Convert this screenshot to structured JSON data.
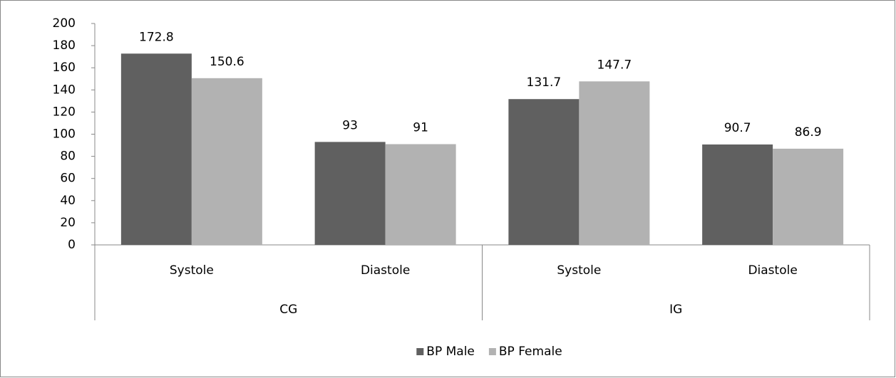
{
  "chart_data": {
    "type": "bar",
    "categories": [
      "Systole",
      "Diastole",
      "Systole",
      "Diastole"
    ],
    "groups": [
      "CG",
      "IG"
    ],
    "series": [
      {
        "name": "BP Male",
        "color": "#606060",
        "values": [
          172.8,
          93,
          131.7,
          90.7
        ]
      },
      {
        "name": "BP Female",
        "color": "#b2b2b2",
        "values": [
          150.6,
          91,
          147.7,
          86.9
        ]
      }
    ],
    "ylim": [
      0,
      200
    ],
    "yticks": [
      0,
      20,
      40,
      60,
      80,
      100,
      120,
      140,
      160,
      180,
      200
    ],
    "grid": false,
    "legend": "bottom"
  }
}
